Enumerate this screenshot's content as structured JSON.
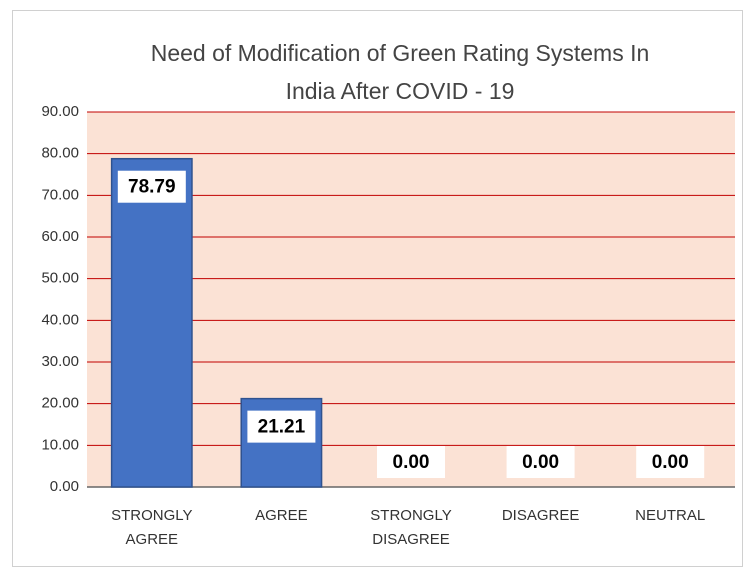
{
  "chart_data": {
    "type": "bar",
    "title": "Need of Modification of Green Rating Systems In India After COVID - 19",
    "categories": [
      "STRONGLY AGREE",
      "AGREE",
      "STRONGLY DISAGREE",
      "DISAGREE",
      "NEUTRAL"
    ],
    "values": [
      78.79,
      21.21,
      0,
      0,
      0
    ],
    "value_labels": [
      "78.79",
      "21.21",
      "0.00",
      "0.00",
      "0.00"
    ],
    "color": "#4472c4",
    "ylim": [
      0,
      90
    ],
    "yticks": [
      {
        "value": 0,
        "label": "0.00"
      },
      {
        "value": 10,
        "label": "10.00"
      },
      {
        "value": 20,
        "label": "20.00"
      },
      {
        "value": 30,
        "label": "30.00"
      },
      {
        "value": 40,
        "label": "40.00"
      },
      {
        "value": 50,
        "label": "50.00"
      },
      {
        "value": 60,
        "label": "60.00"
      },
      {
        "value": 70,
        "label": "70.00"
      },
      {
        "value": 80,
        "label": "80.00"
      },
      {
        "value": 90,
        "label": "90.00"
      }
    ],
    "grid": true
  }
}
